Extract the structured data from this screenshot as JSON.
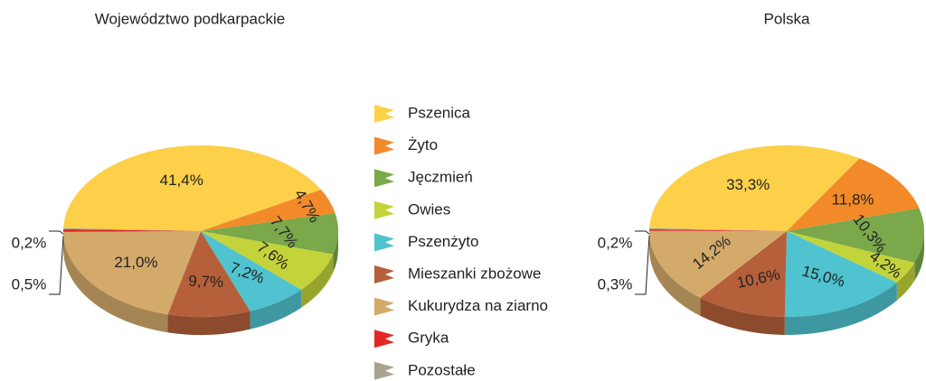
{
  "chart_data": [
    {
      "type": "pie",
      "title": "Województwo podkarpackie",
      "categories": [
        "Pszenica",
        "Żyto",
        "Jęczmień",
        "Owies",
        "Pszenżyto",
        "Mieszanki zbożowe",
        "Kukurydza na ziarno",
        "Gryka",
        "Pozostałe"
      ],
      "colors": [
        "#fdd04a",
        "#f28a2a",
        "#7aa84a",
        "#c3d33a",
        "#4fc3cf",
        "#b5603a",
        "#d4aa6a",
        "#e32727",
        "#a8a390"
      ],
      "values": [
        41.4,
        4.7,
        7.7,
        7.6,
        7.2,
        9.7,
        21.0,
        0.5,
        0.2
      ],
      "value_labels": [
        "41,4%",
        "4,7%",
        "7,7%",
        "7,6%",
        "7,2%",
        "9,7%",
        "21,0%",
        "0,5%",
        "0,2%"
      ]
    },
    {
      "type": "pie",
      "title": "Polska",
      "values": [
        33.3,
        11.8,
        10.3,
        4.2,
        15.0,
        10.6,
        14.2,
        0.3,
        0.2
      ],
      "value_labels": [
        "33,3%",
        "11,8%",
        "10,3%",
        "4,2%",
        "15,0%",
        "10,6%",
        "14,2%",
        "0,3%",
        "0,2%"
      ]
    }
  ]
}
